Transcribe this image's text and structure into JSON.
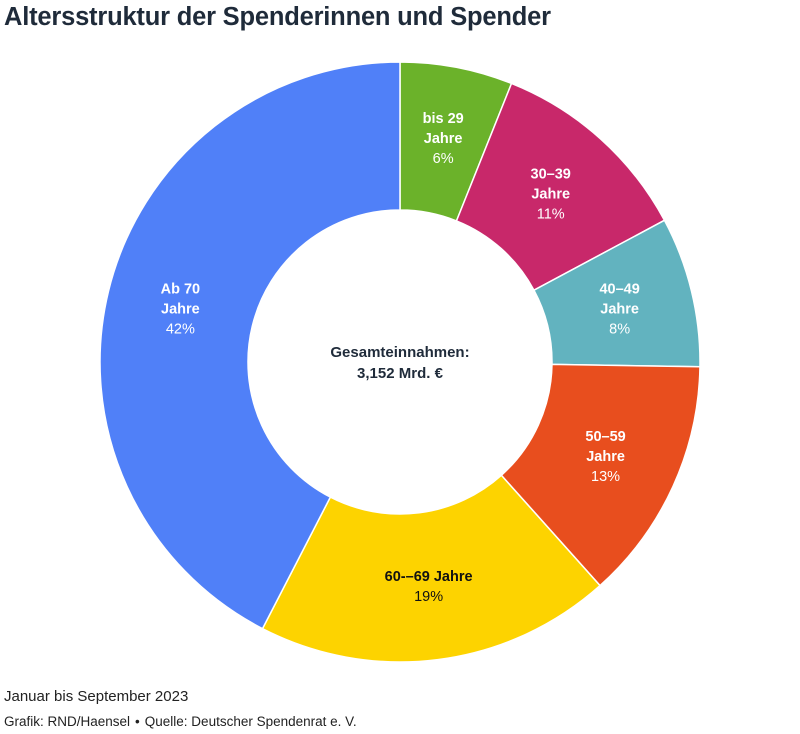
{
  "header": {
    "title": "Altersstruktur der Spenderinnen und Spender"
  },
  "chart_data": {
    "type": "pie",
    "center_label": {
      "line1": "Gesamteinnahmen:",
      "line2": "3,152 Mrd. €"
    },
    "slices": [
      {
        "label_line1": "bis 29",
        "label_line2": "Jahre",
        "value": 6,
        "pct_label": "6%",
        "color": "#6bb22a",
        "text_color": "#ffffff"
      },
      {
        "label_line1": "30–39",
        "label_line2": "Jahre",
        "value": 11,
        "pct_label": "11%",
        "color": "#c8286a",
        "text_color": "#ffffff"
      },
      {
        "label_line1": "40–49",
        "label_line2": "Jahre",
        "value": 8,
        "pct_label": "8%",
        "color": "#62b3bf",
        "text_color": "#ffffff"
      },
      {
        "label_line1": "50–59",
        "label_line2": "Jahre",
        "value": 13,
        "pct_label": "13%",
        "color": "#e84e1e",
        "text_color": "#ffffff"
      },
      {
        "label_line1": "60-–69 Jahre",
        "label_line2": "",
        "value": 19,
        "pct_label": "19%",
        "color": "#fdd300",
        "text_color": "#111111"
      },
      {
        "label_line1": "Ab 70",
        "label_line2": "Jahre",
        "value": 42,
        "pct_label": "42%",
        "color": "#5080f8",
        "text_color": "#ffffff"
      }
    ]
  },
  "footer": {
    "period": "Januar bis September 2023",
    "grafik": "Grafik: RND/Haensel",
    "separator": "•",
    "quelle": "Quelle: Deutscher Spendenrat e. V."
  }
}
